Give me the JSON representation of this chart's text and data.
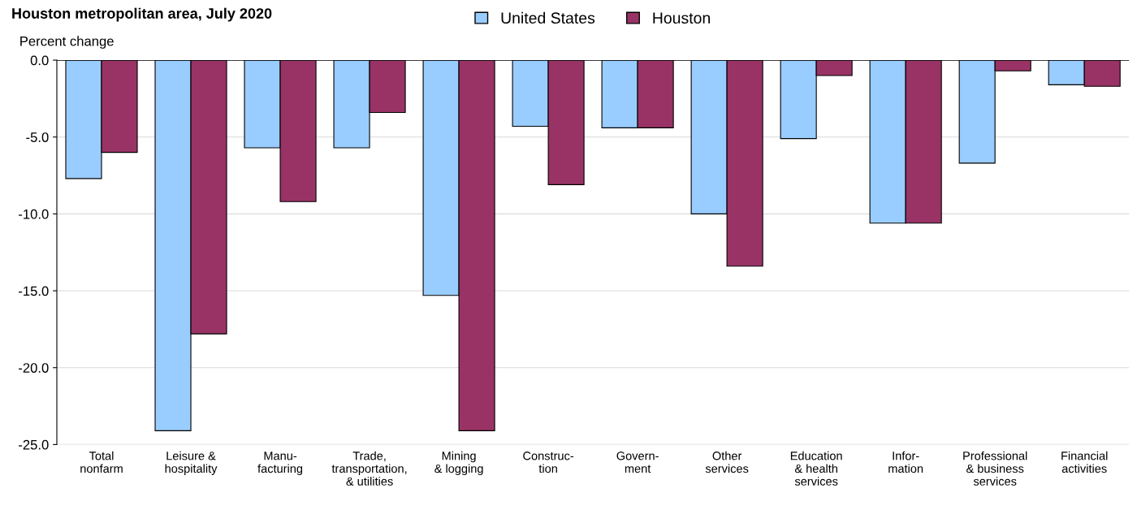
{
  "chart_data": {
    "type": "bar",
    "title": "Houston metropolitan area, July 2020",
    "ylabel": "Percent change",
    "categories": [
      "Total\nnonfarm",
      "Leisure &\nhospitality",
      "Manu-\nfacturing",
      "Trade,\ntransportation,\n& utilities",
      "Mining\n& logging",
      "Construc-\ntion",
      "Govern-\nment",
      "Other\nservices",
      "Education\n& health\nservices",
      "Infor-\nmation",
      "Professional\n& business\nservices",
      "Financial\nactivities"
    ],
    "series": [
      {
        "name": "United States",
        "color": "#99ccff",
        "values": [
          -7.7,
          -24.1,
          -5.7,
          -5.7,
          -15.3,
          -4.3,
          -4.4,
          -10.0,
          -5.1,
          -10.6,
          -6.7,
          -1.6
        ]
      },
      {
        "name": "Houston",
        "color": "#993366",
        "values": [
          -6.0,
          -17.8,
          -9.2,
          -3.4,
          -24.1,
          -8.1,
          -4.4,
          -13.4,
          -1.0,
          -10.6,
          -0.7,
          -1.7
        ]
      }
    ],
    "ylim": [
      -25,
      0
    ],
    "yticks": [
      {
        "value": 0,
        "label": "0.0"
      },
      {
        "value": -5,
        "label": "-5.0"
      },
      {
        "value": -10,
        "label": "-10.0"
      },
      {
        "value": -15,
        "label": "-15.0"
      },
      {
        "value": -20,
        "label": "-20.0"
      },
      {
        "value": -25,
        "label": "-25.0"
      }
    ],
    "grid": "y",
    "legend": "top"
  }
}
